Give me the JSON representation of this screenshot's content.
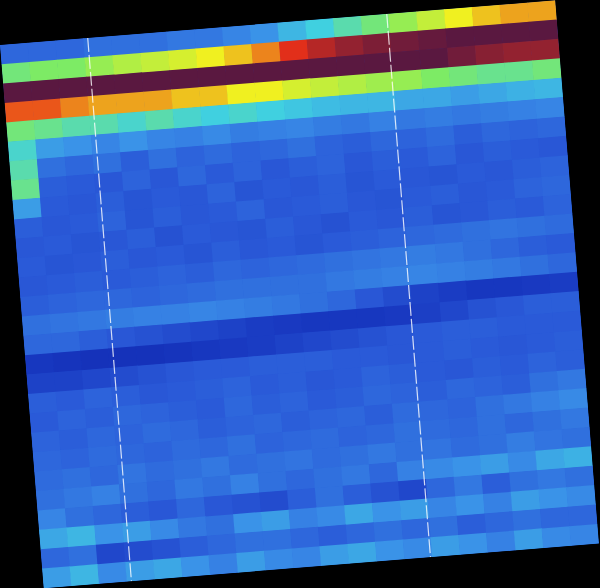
{
  "chart_data": {
    "type": "heatmap",
    "tick_labels": false,
    "colorbar_range": [
      0,
      100
    ],
    "cells": [
      [
        28,
        28,
        28,
        30,
        30,
        30,
        32,
        32,
        35,
        38,
        45,
        50,
        55,
        60,
        65,
        70,
        75,
        78,
        80,
        80
      ],
      [
        60,
        62,
        62,
        65,
        68,
        70,
        72,
        75,
        78,
        82,
        88,
        92,
        95,
        97,
        98,
        99,
        100,
        100,
        100,
        100
      ],
      [
        100,
        100,
        100,
        100,
        100,
        100,
        100,
        100,
        100,
        100,
        100,
        100,
        100,
        100,
        100,
        100,
        98,
        96,
        95,
        95
      ],
      [
        85,
        85,
        82,
        80,
        80,
        80,
        78,
        78,
        75,
        75,
        72,
        70,
        68,
        66,
        65,
        62,
        60,
        58,
        58,
        60
      ],
      [
        60,
        58,
        55,
        55,
        52,
        55,
        52,
        50,
        52,
        50,
        48,
        46,
        45,
        45,
        42,
        42,
        40,
        42,
        44,
        45
      ],
      [
        52,
        40,
        38,
        35,
        38,
        35,
        34,
        36,
        33,
        34,
        35,
        33,
        32,
        34,
        32,
        33,
        32,
        33,
        34,
        35
      ],
      [
        55,
        30,
        28,
        30,
        26,
        30,
        27,
        29,
        27,
        28,
        30,
        27,
        26,
        28,
        27,
        29,
        26,
        28,
        27,
        28
      ],
      [
        58,
        26,
        25,
        24,
        27,
        24,
        28,
        25,
        27,
        24,
        26,
        27,
        24,
        26,
        25,
        27,
        24,
        26,
        25,
        24
      ],
      [
        40,
        25,
        24,
        26,
        23,
        25,
        24,
        27,
        23,
        25,
        24,
        26,
        23,
        25,
        24,
        23,
        25,
        24,
        26,
        27
      ],
      [
        26,
        24,
        25,
        27,
        23,
        26,
        24,
        25,
        27,
        24,
        25,
        26,
        24,
        23,
        25,
        26,
        24,
        25,
        27,
        28
      ],
      [
        24,
        25,
        23,
        24,
        26,
        22,
        25,
        24,
        23,
        26,
        24,
        22,
        25,
        24,
        26,
        23,
        24,
        26,
        25,
        27
      ],
      [
        25,
        23,
        24,
        26,
        24,
        25,
        23,
        26,
        24,
        25,
        23,
        25,
        26,
        27,
        28,
        29,
        30,
        31,
        30,
        29
      ],
      [
        24,
        25,
        26,
        25,
        26,
        27,
        26,
        28,
        27,
        28,
        29,
        30,
        31,
        32,
        33,
        32,
        30,
        28,
        26,
        25
      ],
      [
        26,
        27,
        28,
        28,
        27,
        28,
        29,
        30,
        30,
        30,
        30,
        32,
        33,
        34,
        35,
        34,
        33,
        32,
        30,
        28
      ],
      [
        30,
        31,
        32,
        33,
        34,
        34,
        35,
        34,
        33,
        32,
        30,
        28,
        24,
        20,
        16,
        14,
        12,
        12,
        13,
        14
      ],
      [
        28,
        28,
        26,
        24,
        22,
        20,
        18,
        16,
        14,
        13,
        12,
        12,
        12,
        13,
        15,
        18,
        22,
        24,
        26,
        26
      ],
      [
        12,
        11,
        10,
        10,
        10,
        11,
        12,
        13,
        14,
        16,
        18,
        20,
        22,
        24,
        25,
        26,
        26,
        25,
        25,
        25
      ],
      [
        16,
        16,
        18,
        20,
        22,
        24,
        25,
        25,
        26,
        26,
        26,
        25,
        25,
        24,
        25,
        26,
        25,
        24,
        25,
        26
      ],
      [
        26,
        25,
        27,
        26,
        24,
        25,
        26,
        27,
        25,
        26,
        24,
        25,
        27,
        26,
        25,
        24,
        26,
        25,
        27,
        26
      ],
      [
        25,
        27,
        26,
        28,
        27,
        26,
        25,
        28,
        26,
        27,
        25,
        26,
        28,
        27,
        26,
        28,
        27,
        26,
        30,
        32
      ],
      [
        27,
        26,
        28,
        27,
        29,
        28,
        26,
        27,
        28,
        26,
        27,
        28,
        26,
        29,
        28,
        27,
        30,
        32,
        34,
        36
      ],
      [
        28,
        27,
        29,
        28,
        27,
        29,
        28,
        30,
        27,
        28,
        29,
        27,
        28,
        30,
        29,
        28,
        30,
        28,
        30,
        32
      ],
      [
        29,
        30,
        28,
        31,
        29,
        30,
        32,
        29,
        30,
        31,
        29,
        30,
        32,
        30,
        31,
        29,
        30,
        33,
        31,
        30
      ],
      [
        30,
        32,
        34,
        30,
        28,
        32,
        30,
        34,
        30,
        28,
        30,
        32,
        28,
        34,
        36,
        38,
        40,
        36,
        42,
        44
      ],
      [
        35,
        30,
        28,
        26,
        24,
        28,
        24,
        22,
        20,
        26,
        30,
        26,
        22,
        18,
        28,
        32,
        26,
        30,
        32,
        30
      ],
      [
        42,
        45,
        38,
        40,
        36,
        32,
        30,
        38,
        40,
        34,
        36,
        42,
        38,
        40,
        35,
        38,
        34,
        40,
        38,
        36
      ],
      [
        28,
        30,
        18,
        20,
        22,
        26,
        28,
        30,
        30,
        28,
        26,
        28,
        30,
        28,
        30,
        26,
        28,
        30,
        28,
        28
      ],
      [
        40,
        45,
        36,
        40,
        42,
        38,
        34,
        40,
        36,
        35,
        40,
        42,
        38,
        36,
        40,
        38,
        34,
        40,
        36,
        35
      ]
    ]
  }
}
